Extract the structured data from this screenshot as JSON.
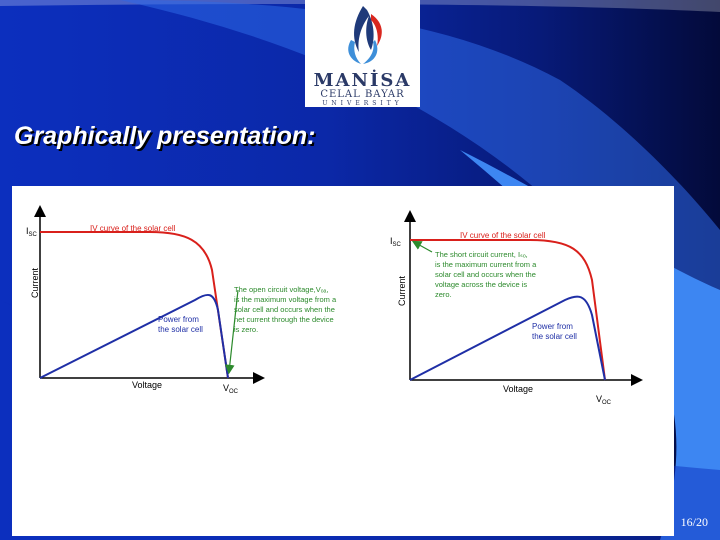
{
  "slide": {
    "title": "Graphically presentation:",
    "page_number": "16/20",
    "colors": {
      "background": "#0b28a8",
      "accent_light": "#3a7cf0",
      "iv_curve": "#d9201b",
      "power_curve": "#1f2fa6"
    }
  },
  "logo": {
    "line1": "MANİSA",
    "line2": "CELAL BAYAR",
    "line3": "UNIVERSITY",
    "icon": "flame-logo-icon"
  },
  "diagrams": [
    {
      "y_axis_label": "Current",
      "x_axis_label": "Voltage",
      "isc_label": "I",
      "isc_sub": "SC",
      "voc_label": "V",
      "voc_sub": "OC",
      "iv_curve_label": "IV curve of the solar cell",
      "power_label": [
        "Power from",
        "the solar cell"
      ],
      "annotation": [
        "The open circuit voltage,Vₒₐ,",
        "is the maximum voltage from a",
        "solar cell and occurs when the",
        "net current through the device",
        "is zero."
      ]
    },
    {
      "y_axis_label": "Current",
      "x_axis_label": "Voltage",
      "isc_label": "I",
      "isc_sub": "SC",
      "voc_label": "V",
      "voc_sub": "OC",
      "iv_curve_label": "IV curve of the solar cell",
      "power_label": [
        "Power from",
        "the solar cell"
      ],
      "annotation": [
        "The short circuit current, Iₛₒ,",
        "is the maximum current from a",
        "solar cell and occurs when the",
        "voltage across the device is",
        "zero."
      ]
    }
  ]
}
